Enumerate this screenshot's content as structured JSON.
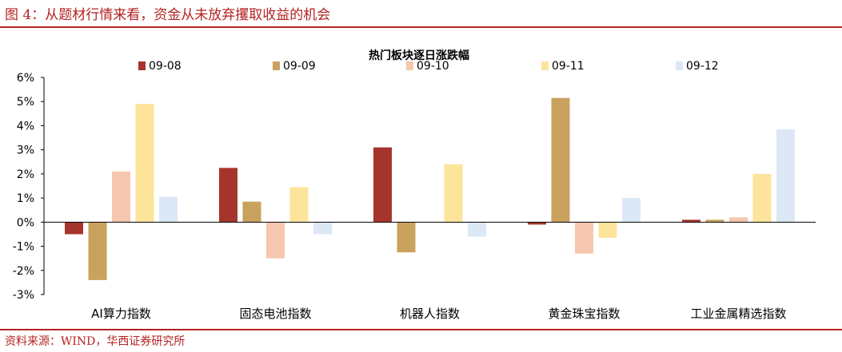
{
  "figure": {
    "title": "图 4：从题材行情来看，资金从未放弃攫取收益的机会",
    "source": "资料来源：WIND，华西证券研究所"
  },
  "chart_data": {
    "type": "bar",
    "title": "热门板块逐日涨跌幅",
    "categories": [
      "AI算力指数",
      "固态电池指数",
      "机器人指数",
      "黄金珠宝指数",
      "工业金属精选指数"
    ],
    "series": [
      {
        "name": "09-08",
        "color": "#a5352c",
        "values": [
          -0.5,
          2.25,
          3.1,
          -0.1,
          0.1
        ]
      },
      {
        "name": "09-09",
        "color": "#c9a25e",
        "values": [
          -2.4,
          0.85,
          -1.25,
          5.15,
          0.1
        ]
      },
      {
        "name": "09-10",
        "color": "#f5c7ae",
        "values": [
          2.1,
          -1.5,
          0.0,
          -1.3,
          0.2
        ]
      },
      {
        "name": "09-11",
        "color": "#fde49b",
        "values": [
          4.9,
          1.45,
          2.4,
          -0.65,
          2.0
        ]
      },
      {
        "name": "09-12",
        "color": "#dce8f5",
        "values": [
          1.05,
          -0.5,
          -0.6,
          1.0,
          3.85
        ]
      }
    ],
    "ylim": [
      -3,
      6
    ],
    "yticks": [
      "-3%",
      "-2%",
      "-1%",
      "0%",
      "1%",
      "2%",
      "3%",
      "4%",
      "5%",
      "6%"
    ],
    "xlabel": "",
    "ylabel": "",
    "legend": "top",
    "grid": false
  }
}
